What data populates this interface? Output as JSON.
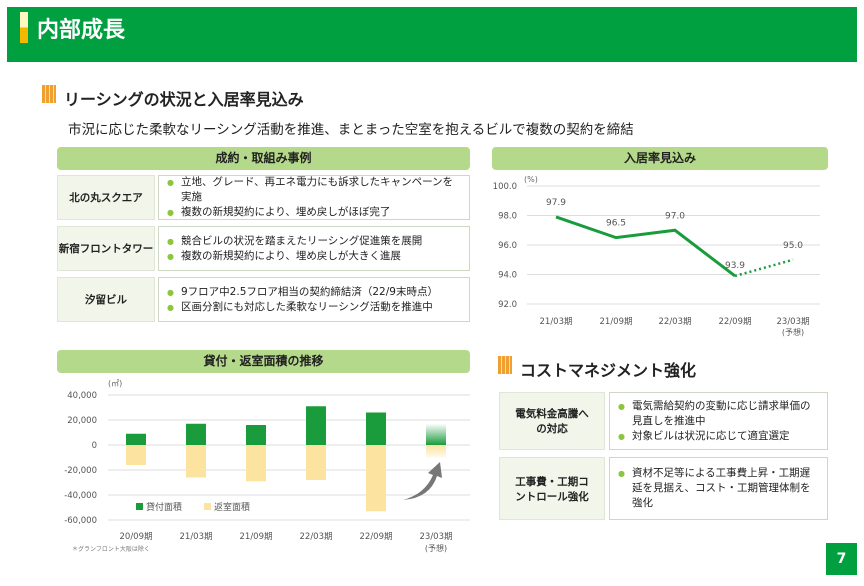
{
  "header": {
    "title": "内部成長"
  },
  "leasing": {
    "title": "リーシングの状況と入居率見込み",
    "subtitle": "市況に応じた柔軟なリーシング活動を推進、まとまった空室を抱えるビルで複数の契約を締結",
    "cases_header": "成約・取組み事例",
    "cases": [
      {
        "name": "北の丸スクエア",
        "points": [
          "立地、グレード、再エネ電力にも訴求したキャンペーンを実施",
          "複数の新規契約により、埋め戻しがほぼ完了"
        ]
      },
      {
        "name": "新宿フロントタワー",
        "points": [
          "競合ビルの状況を踏まえたリーシング促進策を展開",
          "複数の新規契約により、埋め戻しが大きく進展"
        ]
      },
      {
        "name": "汐留ビル",
        "points": [
          "9フロア中2.5フロア相当の契約締結済（22/9末時点）",
          "区画分割にも対応した柔軟なリーシング活動を推進中"
        ]
      }
    ]
  },
  "cost": {
    "title": "コストマネジメント強化",
    "items": [
      {
        "name": "電気料金高騰への対応",
        "points": [
          "電気需給契約の変動に応じ請求単価の見直しを推進中",
          "対象ビルは状況に応じて適宜選定"
        ]
      },
      {
        "name": "工事費・工期コントロール強化",
        "points": [
          "資材不足等による工事費上昇・工期遅延を見据え、コスト・工期管理体制を強化"
        ]
      }
    ]
  },
  "page_number": "7",
  "chart_data": [
    {
      "type": "line",
      "title": "入居率見込み",
      "unit": "(%)",
      "categories": [
        "21/03期",
        "21/09期",
        "22/03期",
        "22/09期",
        "23/03期"
      ],
      "category_notes": [
        "",
        "",
        "",
        "",
        "(予想)"
      ],
      "values": [
        97.9,
        96.5,
        97.0,
        93.9,
        95.0
      ],
      "forecast_from_index": 3,
      "ylim": [
        92,
        100
      ],
      "yticks": [
        "100.0",
        "98.0",
        "96.0",
        "94.0",
        "92.0"
      ],
      "color": "#1a9b3c",
      "grid": true
    },
    {
      "type": "bar",
      "title": "貸付・返室面積の推移",
      "unit": "(㎡)",
      "categories": [
        "20/09期",
        "21/03期",
        "21/09期",
        "22/03期",
        "22/09期",
        "23/03期"
      ],
      "category_notes": [
        "",
        "",
        "",
        "",
        "",
        "(予想)"
      ],
      "series": [
        {
          "name": "貸付面積",
          "values": [
            9000,
            17000,
            16000,
            31000,
            26000,
            17000
          ],
          "color": "#1a9b3c"
        },
        {
          "name": "返室面積",
          "values": [
            -16000,
            -26000,
            -29000,
            -28000,
            -53000,
            -10000
          ],
          "color": "#fde3a0"
        }
      ],
      "ylim": [
        -60000,
        40000
      ],
      "yticks": [
        "40,000",
        "20,000",
        "0",
        "-20,000",
        "-40,000",
        "-60,000"
      ],
      "legend": "bottom-left",
      "grid": true,
      "footnote": "＊グランフロント大阪は除く"
    }
  ]
}
